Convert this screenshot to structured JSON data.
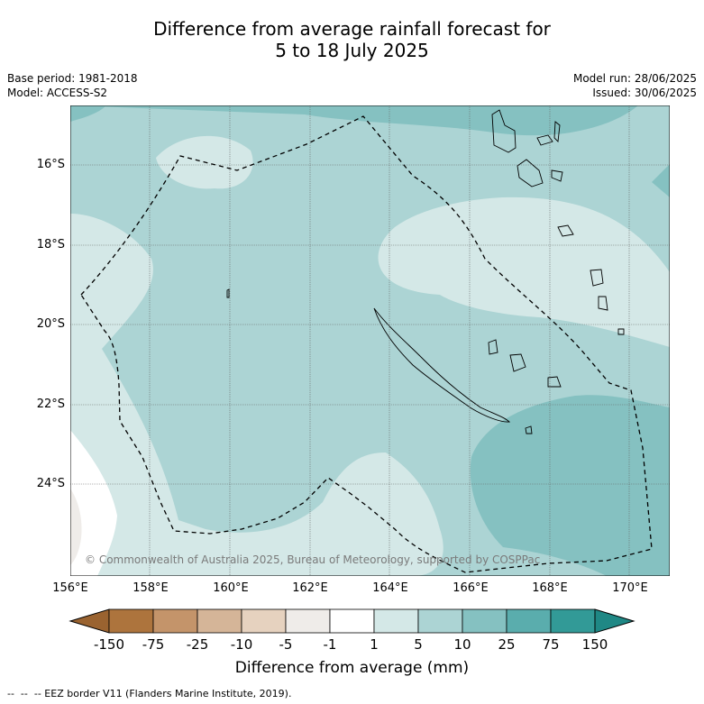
{
  "title": {
    "line1": "Difference from average rainfall forecast for",
    "line2": "5 to 18 July 2025"
  },
  "meta": {
    "base_period": "Base period: 1981-2018",
    "model": "Model: ACCESS-S2",
    "model_run": "Model run: 28/06/2025",
    "issued": "Issued: 30/06/2025"
  },
  "map": {
    "lat_ticks": [
      "16°S",
      "18°S",
      "20°S",
      "22°S",
      "24°S"
    ],
    "lon_ticks": [
      "156°E",
      "158°E",
      "160°E",
      "162°E",
      "164°E",
      "166°E",
      "168°E",
      "170°E"
    ],
    "copyright": "© Commonwealth of Australia 2025, Bureau of Meteorology, supported by COSPPac"
  },
  "colorbar": {
    "tick_labels": [
      "-150",
      "-75",
      "-25",
      "-10",
      "-5",
      "-1",
      "1",
      "5",
      "10",
      "25",
      "75",
      "150"
    ],
    "colors": [
      "#ad743d",
      "#c4946a",
      "#d5b598",
      "#e6d2bf",
      "#efece9",
      "#ffffff",
      "#d4e8e7",
      "#acd4d4",
      "#85c1c1",
      "#5aadad",
      "#329a97"
    ],
    "extend_low_color": "#9a6330",
    "extend_high_color": "#1f8885",
    "title": "Difference from average (mm)"
  },
  "footnote": "--  --  -- EEZ border V11 (Flanders Marine Institute, 2019)."
}
